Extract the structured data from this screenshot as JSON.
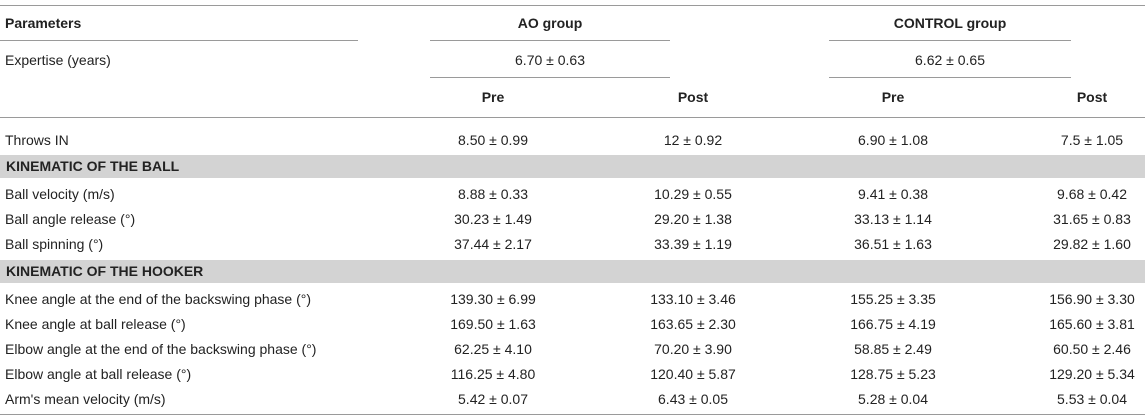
{
  "header": {
    "parameters": "Parameters",
    "ao_group": "AO group",
    "control_group": "CONTROL group"
  },
  "expertise": {
    "label": "Expertise (years)",
    "ao": "6.70 ± 0.63",
    "control": "6.62 ± 0.65"
  },
  "subheader": {
    "ao_pre": "Pre",
    "ao_post": "Post",
    "ctrl_pre": "Pre",
    "ctrl_post": "Post"
  },
  "throws": {
    "label": "Throws IN",
    "values": [
      "8.50 ± 0.99",
      "12 ± 0.92",
      "6.90 ± 1.08",
      "7.5 ± 1.05"
    ]
  },
  "sections": [
    {
      "title": "KINEMATIC OF THE BALL",
      "rows": [
        {
          "label": "Ball velocity (m/s)",
          "values": [
            "8.88 ± 0.33",
            "10.29 ± 0.55",
            "9.41 ± 0.38",
            "9.68 ± 0.42"
          ]
        },
        {
          "label": "Ball angle release (°)",
          "values": [
            "30.23 ± 1.49",
            "29.20 ± 1.38",
            "33.13 ± 1.14",
            "31.65 ± 0.83"
          ]
        },
        {
          "label": "Ball spinning (°)",
          "values": [
            "37.44 ± 2.17",
            "33.39 ± 1.19",
            "36.51 ± 1.63",
            "29.82 ± 1.60"
          ]
        }
      ]
    },
    {
      "title": "KINEMATIC OF THE HOOKER",
      "rows": [
        {
          "label": "Knee angle at the end of the backswing phase (°)",
          "values": [
            "139.30 ± 6.99",
            "133.10 ± 3.46",
            "155.25 ± 3.35",
            "156.90 ± 3.30"
          ]
        },
        {
          "label": "Knee angle at ball release (°)",
          "values": [
            "169.50 ± 1.63",
            "163.65 ± 2.30",
            "166.75 ± 4.19",
            "165.60 ± 3.81"
          ]
        },
        {
          "label": "Elbow angle at the end of the backswing phase (°)",
          "values": [
            "62.25 ± 4.10",
            "70.20 ± 3.90",
            "58.85 ± 2.49",
            "60.50 ± 2.46"
          ]
        },
        {
          "label": "Elbow angle at ball release (°)",
          "values": [
            "116.25 ± 4.80",
            "120.40 ± 5.87",
            "128.75 ± 5.23",
            "129.20 ± 5.34"
          ]
        },
        {
          "label": "Arm's mean velocity (m/s)",
          "values": [
            "5.42 ± 0.07",
            "6.43 ± 0.05",
            "5.28 ± 0.04",
            "5.53 ± 0.04"
          ]
        }
      ]
    }
  ]
}
